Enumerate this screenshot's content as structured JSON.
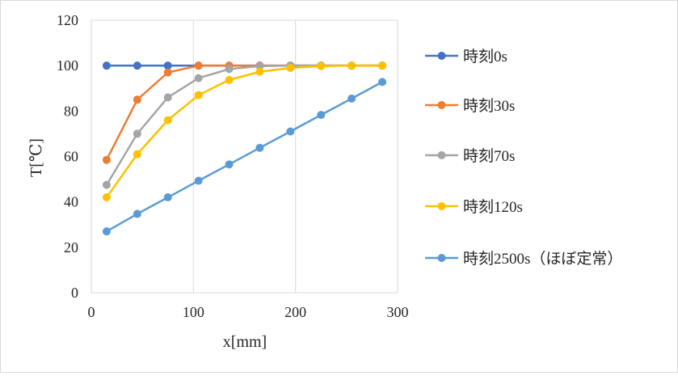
{
  "chart_data": {
    "type": "line",
    "title": "",
    "xlabel": "x[mm]",
    "ylabel": "T[℃]",
    "xlim": [
      0,
      300
    ],
    "ylim": [
      0,
      120
    ],
    "xticks": [
      0,
      100,
      200,
      300
    ],
    "yticks": [
      0,
      20,
      40,
      60,
      80,
      100,
      120
    ],
    "grid": "vertical",
    "legend_position": "right",
    "x": [
      15,
      45,
      75,
      105,
      135,
      165,
      195,
      225,
      255,
      285
    ],
    "series": [
      {
        "name": "時刻0s",
        "color": "#4472C4",
        "values": [
          100,
          100,
          100,
          100,
          100,
          100,
          100,
          100,
          100,
          100
        ]
      },
      {
        "name": "時刻30s",
        "color": "#ED7D31",
        "values": [
          58.5,
          85,
          97,
          100,
          100,
          100,
          100,
          100,
          100,
          100
        ]
      },
      {
        "name": "時刻70s",
        "color": "#A5A5A5",
        "values": [
          47.5,
          70,
          86,
          94.5,
          98.5,
          99.8,
          100,
          100,
          100,
          100
        ]
      },
      {
        "name": "時刻120s",
        "color": "#FFC000",
        "values": [
          42,
          61,
          76,
          87,
          93.7,
          97.3,
          99,
          99.8,
          100,
          100
        ]
      },
      {
        "name": "時刻2500s（ほぼ定常）",
        "color": "#5B9BD5",
        "values": [
          27,
          34.7,
          42,
          49.3,
          56.5,
          63.8,
          71,
          78.3,
          85.5,
          92.8
        ]
      }
    ]
  }
}
